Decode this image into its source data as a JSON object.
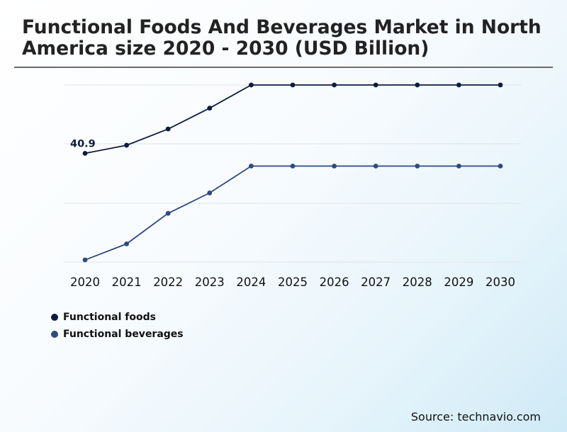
{
  "chart_data": {
    "type": "line",
    "title": "Functional Foods And Beverages Market in North America size 2020 - 2030 (USD Billion)",
    "categories": [
      "2020",
      "2021",
      "2022",
      "2023",
      "2024",
      "2025",
      "2026",
      "2027",
      "2028",
      "2029",
      "2030"
    ],
    "ylim": [
      0,
      100
    ],
    "grid": true,
    "legend_position": "bottom-left",
    "annotations": [
      {
        "series": "Functional foods",
        "category": "2020",
        "label": "40.9"
      }
    ],
    "series": [
      {
        "name": "Functional foods",
        "color": "#0d1b3e",
        "values": [
          40.9,
          44.4,
          51.4,
          60.4,
          70.4,
          70.4,
          70.4,
          70.4,
          70.4,
          70.4,
          70.4
        ]
      },
      {
        "name": "Functional beverages",
        "color": "#2e4a80",
        "values": [
          -5.1,
          1.8,
          15.0,
          23.8,
          35.4,
          35.4,
          35.4,
          35.4,
          35.4,
          35.4,
          35.4
        ]
      }
    ]
  },
  "source": "Source: technavio.com"
}
